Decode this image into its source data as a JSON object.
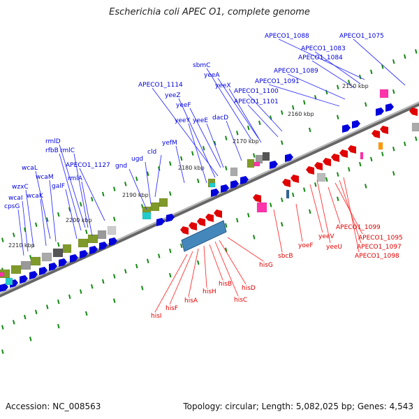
{
  "title": "Escherichia coli APEC O1, complete genome",
  "footer": {
    "accession": "Accession: NC_008563",
    "summary": "Topology: circular; Length: 5,082,025 bp; Genes: 4,543"
  },
  "colors": {
    "plus": "#0000dd",
    "minus": "#e00000",
    "backbone": "#888888",
    "tick": "#118811"
  },
  "kbp_ticks": [
    "2150 kbp",
    "2160 kbp",
    "2170 kbp",
    "2180 kbp",
    "2190 kbp",
    "2200 kbp",
    "2210 kbp"
  ],
  "top_labels": [
    "APECO1_1075",
    "APECO1_1088",
    "APECO1_1083",
    "APECO1_1084",
    "APECO1_1089",
    "APECO1_1091",
    "sbmC",
    "yeeA",
    "yeeX",
    "APECO1_1100",
    "APECO1_1101",
    "APECO1_1114",
    "yeeZ",
    "yeeF",
    "yeeY",
    "yeeE",
    "dacD",
    "yefM",
    "cld",
    "ugd",
    "gnd",
    "APECO1_1127",
    "rmlD",
    "rfbB",
    "rmlC",
    "rmlA",
    "galF",
    "wcaL",
    "wcaM",
    "wzxC",
    "wcaK",
    "wcaI",
    "cpsG"
  ],
  "bottom_labels": [
    "APECO1_1099",
    "APECO1_1095",
    "APECO1_1097",
    "APECO1_1098",
    "yeeV",
    "yeeU",
    "yoeF",
    "sbcB",
    "hisG",
    "hisD",
    "hisC",
    "hisB",
    "hisH",
    "hisA",
    "hisF",
    "hisI"
  ]
}
